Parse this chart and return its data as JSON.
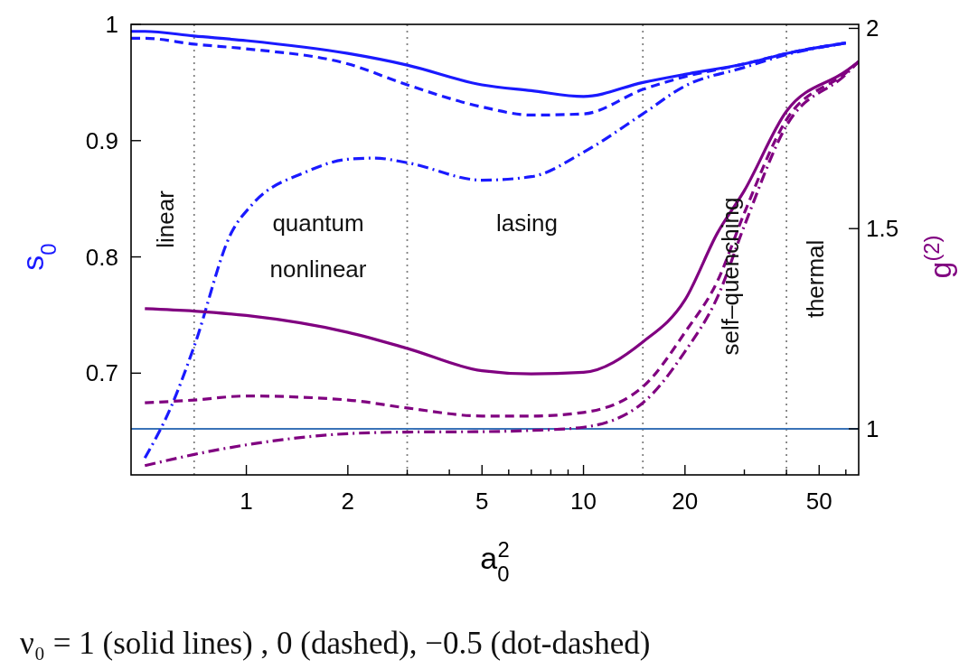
{
  "chart_data": {
    "type": "line",
    "xlabel": "a$_{0}$$^{2}$",
    "ylabel": "s$_{0}$",
    "y2label": "g$^{(2)}$",
    "log": "x",
    "xlim": [
      0.455,
      65.5
    ],
    "xticks": [
      1,
      2,
      {
        "value": 3,
        "label": null
      },
      {
        "value": 4,
        "label": null
      },
      5,
      {
        "value": 6,
        "label": null
      },
      {
        "value": 7,
        "label": null
      },
      {
        "value": 8,
        "label": null
      },
      {
        "value": 9,
        "label": null
      },
      10,
      20,
      {
        "value": 30,
        "label": null
      },
      {
        "value": 40,
        "label": null
      },
      50,
      {
        "value": 60,
        "label": null
      }
    ],
    "ylim": [
      0.6125,
      1.0
    ],
    "yticks": [
      0.7,
      0.8,
      0.9,
      1
    ],
    "y2lim": [
      0.885,
      2.01
    ],
    "y2ticks": [
      1,
      1.5,
      2
    ],
    "series": [
      {
        "color": "#1a1aff",
        "line_style": "solid",
        "x": [
          0.455,
          0.5,
          0.7,
          1,
          2,
          3,
          5,
          7,
          10,
          15,
          20,
          30,
          40,
          60
        ],
        "values": [
          0.994,
          0.994,
          0.99,
          0.986,
          0.975,
          0.965,
          0.948,
          0.943,
          0.938,
          0.95,
          0.957,
          0.966,
          0.975,
          0.984
        ]
      },
      {
        "color": "#1a1aff",
        "line_style": "dashed",
        "x": [
          0.455,
          0.5,
          0.7,
          1,
          2,
          3,
          5,
          7,
          10,
          15,
          20,
          30,
          40,
          60
        ],
        "values": [
          0.988,
          0.988,
          0.983,
          0.979,
          0.966,
          0.948,
          0.929,
          0.922,
          0.923,
          0.944,
          0.955,
          0.966,
          0.975,
          0.984
        ]
      },
      {
        "color": "#1a1aff",
        "line_style": "dashdot",
        "x": [
          0.5,
          0.6,
          0.7,
          0.9,
          1.04,
          1.5,
          2,
          2.4,
          3,
          5,
          7,
          10,
          15,
          20,
          30,
          40,
          60
        ],
        "values": [
          0.627,
          0.672,
          0.723,
          0.82,
          0.845,
          0.873,
          0.884,
          0.885,
          0.881,
          0.866,
          0.869,
          0.89,
          0.923,
          0.947,
          0.963,
          0.974,
          0.984
        ]
      },
      {
        "color": "#800080",
        "line_style": "solid",
        "axis": "y2",
        "x": [
          0.5,
          0.7,
          1,
          2,
          3,
          5,
          7,
          10,
          15,
          20,
          25,
          30,
          40,
          60,
          65.5
        ],
        "values": [
          1.3,
          1.294,
          1.283,
          1.241,
          1.201,
          1.145,
          1.137,
          1.141,
          1.217,
          1.322,
          1.49,
          1.595,
          1.793,
          1.893,
          1.917
        ]
      },
      {
        "color": "#800080",
        "line_style": "dashed",
        "axis": "y2",
        "x": [
          0.5,
          0.7,
          1,
          2,
          3,
          5,
          7,
          10,
          15,
          20,
          25,
          30,
          40,
          60,
          65.5
        ],
        "values": [
          1.065,
          1.072,
          1.082,
          1.072,
          1.052,
          1.032,
          1.032,
          1.041,
          1.105,
          1.241,
          1.37,
          1.539,
          1.772,
          1.889,
          1.917
        ]
      },
      {
        "color": "#800080",
        "line_style": "dashdot",
        "axis": "y2",
        "x": [
          0.5,
          0.7,
          1,
          2,
          3,
          5,
          7,
          10,
          15,
          20,
          25,
          30,
          40,
          60,
          65.5
        ],
        "values": [
          0.908,
          0.936,
          0.96,
          0.988,
          0.992,
          0.993,
          0.996,
          1.004,
          1.065,
          1.193,
          1.33,
          1.507,
          1.757,
          1.885,
          1.917
        ]
      }
    ],
    "ref_lines": [
      {
        "axis": "x",
        "value": 0.7,
        "color": "#808080",
        "line_style": "dotted"
      },
      {
        "axis": "x",
        "value": 3,
        "color": "#808080",
        "line_style": "dotted"
      },
      {
        "axis": "x",
        "value": 15,
        "color": "#808080",
        "line_style": "dotted"
      },
      {
        "axis": "x",
        "value": 40,
        "color": "#808080",
        "line_style": "dotted"
      },
      {
        "axis": "y2",
        "value": 1,
        "color": "#3a73b8",
        "line_style": "solid"
      }
    ],
    "annotations": [
      "linear",
      "quantum\nnonlinear",
      "lasing",
      "self–quenching",
      "thermal",
      "ν₀ = 1 (solid lines) ,   0 (dashed),  −0.5 (dot-dashed)"
    ]
  }
}
